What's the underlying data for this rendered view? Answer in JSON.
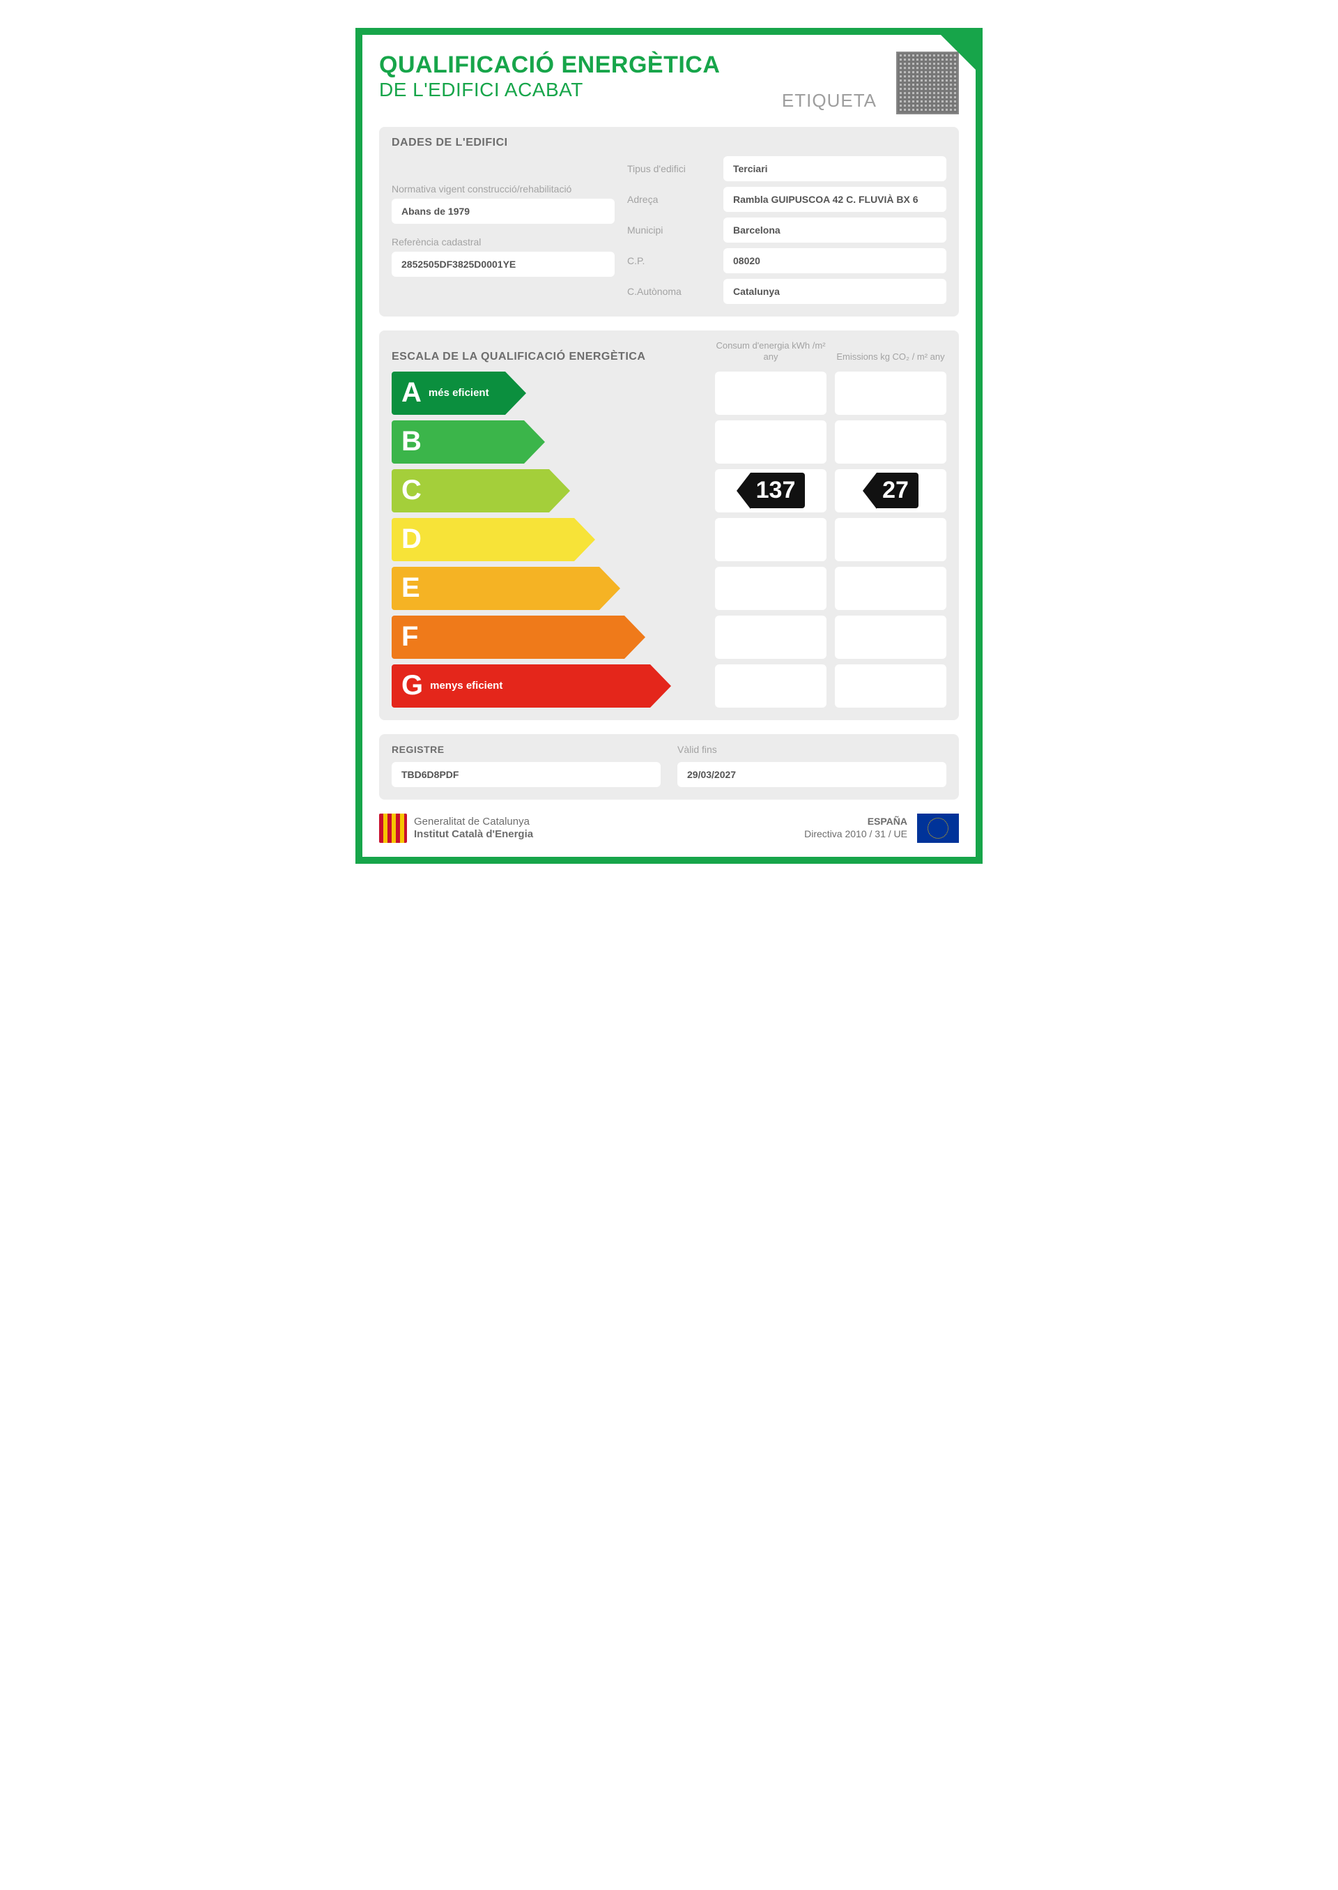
{
  "colors": {
    "border": "#17a54a",
    "panel_bg": "#ececec",
    "label_text": "#a3a3a3",
    "body_text": "#6d6d6d",
    "value_tag_bg": "#111111",
    "value_tag_text": "#ffffff"
  },
  "header": {
    "title_line1": "QUALIFICACIÓ ENERGÈTICA",
    "title_line2": "DE L'EDIFICI ACABAT",
    "etiqueta": "ETIQUETA"
  },
  "building": {
    "section_title": "DADES DE L'EDIFICI",
    "normativa_label": "Normativa vigent construcció/rehabilitació",
    "normativa_value": "Abans de 1979",
    "refcad_label": "Referència cadastral",
    "refcad_value": "2852505DF3825D0001YE",
    "fields": [
      {
        "label": "Tipus d'edifici",
        "value": "Terciari"
      },
      {
        "label": "Adreça",
        "value": "Rambla GUIPUSCOA 42 C. FLUVIÀ BX 6"
      },
      {
        "label": "Municipi",
        "value": "Barcelona"
      },
      {
        "label": "C.P.",
        "value": "08020"
      },
      {
        "label": "C.Autònoma",
        "value": "Catalunya"
      }
    ]
  },
  "scale": {
    "section_title": "ESCALA DE LA QUALIFICACIÓ ENERGÈTICA",
    "col1_label": "Consum d'energia\nkWh /m² any",
    "col2_label": "Emissions\nkg CO₂ / m² any",
    "rows": [
      {
        "letter": "A",
        "sub": "més eficient",
        "color": "#0b8f3e",
        "width_pct": 36
      },
      {
        "letter": "B",
        "sub": "",
        "color": "#3bb54a",
        "width_pct": 42
      },
      {
        "letter": "C",
        "sub": "",
        "color": "#a4cf3a",
        "width_pct": 50
      },
      {
        "letter": "D",
        "sub": "",
        "color": "#f7e338",
        "width_pct": 58
      },
      {
        "letter": "E",
        "sub": "",
        "color": "#f5b324",
        "width_pct": 66
      },
      {
        "letter": "F",
        "sub": "",
        "color": "#ef7a1a",
        "width_pct": 74
      },
      {
        "letter": "G",
        "sub": "menys eficient",
        "color": "#e4261b",
        "width_pct": 82
      }
    ],
    "rating_letter": "C",
    "consumption_value": "137",
    "emissions_value": "27"
  },
  "register": {
    "section_label": "REGISTRE",
    "code": "TBD6D8PDF",
    "valid_label": "Vàlid fins",
    "valid_value": "29/03/2027"
  },
  "footer": {
    "org_line1": "Generalitat de Catalunya",
    "org_line2": "Institut Català d'Energia",
    "country": "ESPAÑA",
    "directive": "Directiva 2010 / 31 / UE"
  }
}
